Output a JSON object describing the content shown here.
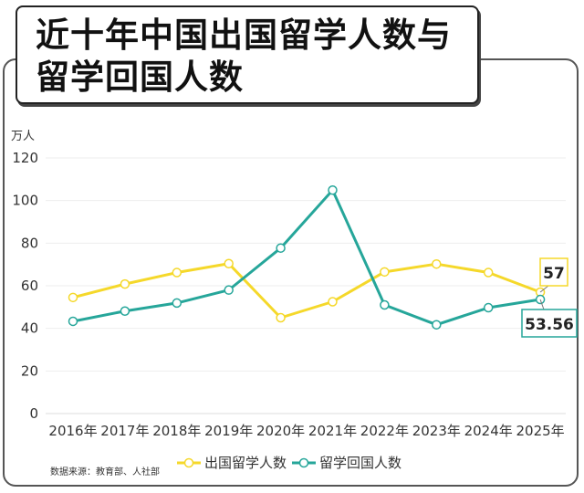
{
  "title": "近十年中国出国留学人数与留学回国人数",
  "source": "数据来源：教育部、人社部",
  "colors": {
    "outbound": "#F5D82A",
    "returned": "#26A69A"
  },
  "chart_data": {
    "type": "line",
    "title": "近十年中国出国留学人数与留学回国人数",
    "ylabel": "万人",
    "xlabel": "",
    "categories": [
      "2016年",
      "2017年",
      "2018年",
      "2019年",
      "2020年",
      "2021年",
      "2022年",
      "2023年",
      "2024年",
      "2025年"
    ],
    "ylim": [
      0,
      120
    ],
    "yticks": [
      0,
      20,
      40,
      60,
      80,
      100,
      120
    ],
    "grid": true,
    "legend": "bottom",
    "series": [
      {
        "name": "出国留学人数",
        "values": [
          54.5,
          60.8,
          66.2,
          70.4,
          45,
          52.5,
          66.5,
          70.2,
          66.2,
          57
        ]
      },
      {
        "name": "留学回国人数",
        "values": [
          43.3,
          48.1,
          51.9,
          58.0,
          77.7,
          104.9,
          51,
          41.7,
          49.7,
          53.56
        ]
      }
    ],
    "annotations": [
      {
        "series": 0,
        "index": 9,
        "text": "57"
      },
      {
        "series": 1,
        "index": 9,
        "text": "53.56"
      }
    ]
  }
}
